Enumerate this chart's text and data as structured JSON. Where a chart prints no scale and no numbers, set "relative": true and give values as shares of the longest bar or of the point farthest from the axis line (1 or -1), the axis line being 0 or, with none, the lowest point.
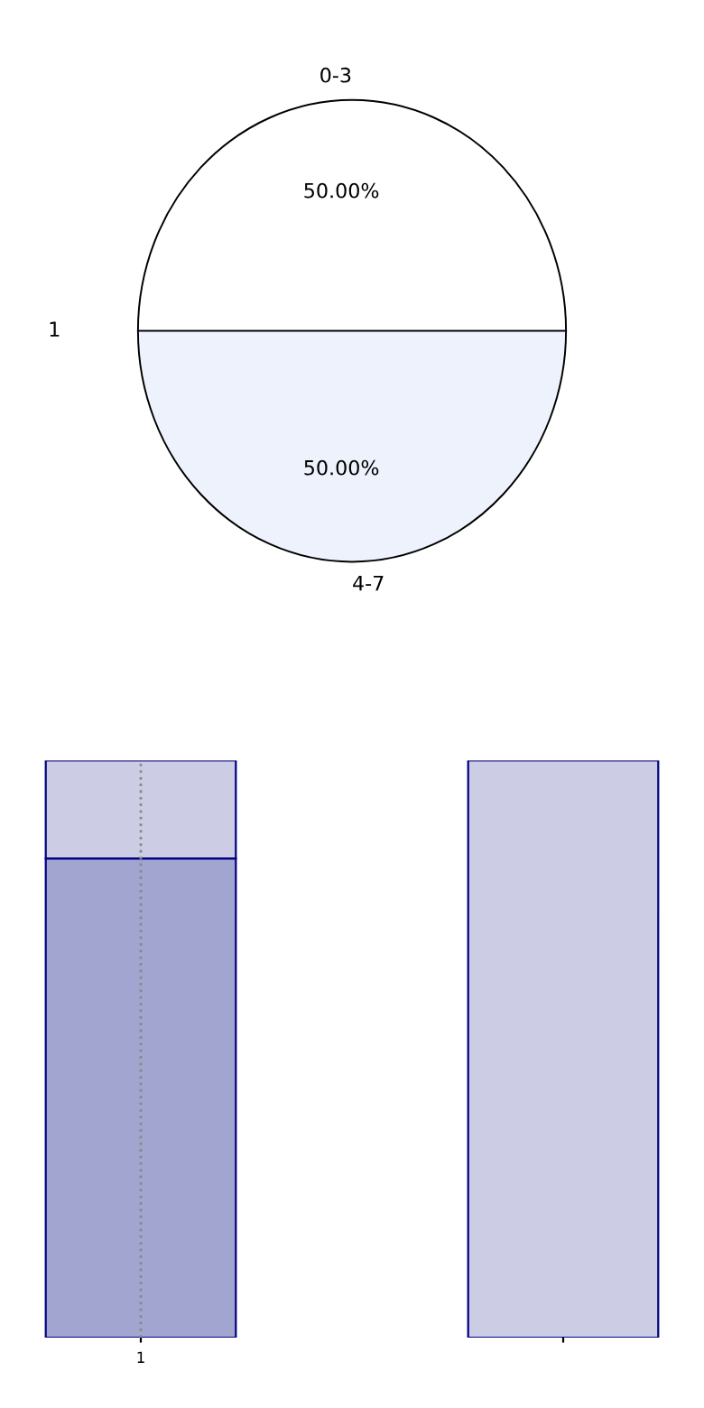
{
  "chart_data": [
    {
      "type": "pie",
      "ylabel": "1",
      "categories": [
        "0-3",
        "4-7"
      ],
      "values": [
        50,
        50
      ],
      "colors": [
        "#ffffff",
        "#eef2fc"
      ],
      "value_labels": [
        "50.00%",
        "50.00%"
      ]
    },
    {
      "type": "bar",
      "categories": [
        "1",
        null
      ],
      "stacked": true,
      "relative": true,
      "ref_lines": [
        {
          "axis": "x",
          "value": "1",
          "color": "#888888",
          "line_style": "dotted"
        }
      ],
      "tick_labels": "x",
      "series": [
        {
          "color": "#a3a5d1",
          "values": [
            0.83,
            0
          ]
        },
        {
          "color": "#cccce4",
          "values": [
            0.17,
            1
          ]
        }
      ]
    }
  ]
}
